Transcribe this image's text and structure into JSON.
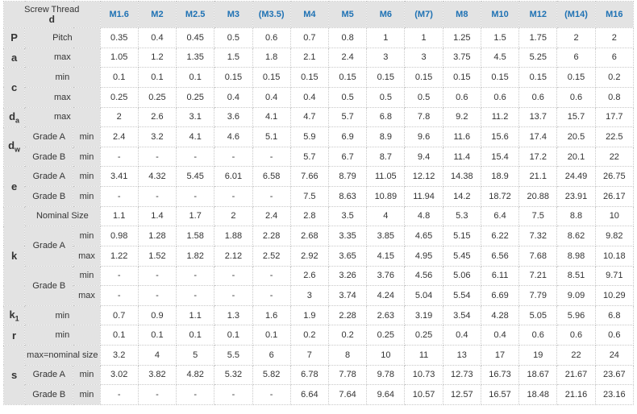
{
  "header": {
    "corner_title": "Screw Thread",
    "corner_symbol": "d",
    "sizes": [
      "M1.6",
      "M2",
      "M2.5",
      "M3",
      "(M3.5)",
      "M4",
      "M5",
      "M6",
      "(M7)",
      "M8",
      "M10",
      "M12",
      "(M14)",
      "M16"
    ]
  },
  "rows": [
    {
      "label": "Pitch",
      "values": [
        "0.35",
        "0.4",
        "0.45",
        "0.5",
        "0.6",
        "0.7",
        "0.8",
        "1",
        "1",
        "1.25",
        "1.5",
        "1.75",
        "2",
        "2"
      ]
    },
    {
      "label": "max",
      "values": [
        "1.05",
        "1.2",
        "1.35",
        "1.5",
        "1.8",
        "2.1",
        "2.4",
        "3",
        "3",
        "3.75",
        "4.5",
        "5.25",
        "6",
        "6"
      ]
    },
    {
      "label": "min",
      "values": [
        "0.1",
        "0.1",
        "0.1",
        "0.15",
        "0.15",
        "0.15",
        "0.15",
        "0.15",
        "0.15",
        "0.15",
        "0.15",
        "0.15",
        "0.15",
        "0.2"
      ]
    },
    {
      "label": "max",
      "values": [
        "0.25",
        "0.25",
        "0.25",
        "0.4",
        "0.4",
        "0.4",
        "0.5",
        "0.5",
        "0.5",
        "0.6",
        "0.6",
        "0.6",
        "0.6",
        "0.8"
      ]
    },
    {
      "label": "max",
      "values": [
        "2",
        "2.6",
        "3.1",
        "3.6",
        "4.1",
        "4.7",
        "5.7",
        "6.8",
        "7.8",
        "9.2",
        "11.2",
        "13.7",
        "15.7",
        "17.7"
      ]
    },
    {
      "grade": "Grade A",
      "label": "min",
      "values": [
        "2.4",
        "3.2",
        "4.1",
        "4.6",
        "5.1",
        "5.9",
        "6.9",
        "8.9",
        "9.6",
        "11.6",
        "15.6",
        "17.4",
        "20.5",
        "22.5"
      ]
    },
    {
      "grade": "Grade B",
      "label": "min",
      "values": [
        "-",
        "-",
        "-",
        "-",
        "-",
        "5.7",
        "6.7",
        "8.7",
        "9.4",
        "11.4",
        "15.4",
        "17.2",
        "20.1",
        "22"
      ]
    },
    {
      "grade": "Grade A",
      "label": "min",
      "values": [
        "3.41",
        "4.32",
        "5.45",
        "6.01",
        "6.58",
        "7.66",
        "8.79",
        "11.05",
        "12.12",
        "14.38",
        "18.9",
        "21.1",
        "24.49",
        "26.75"
      ]
    },
    {
      "grade": "Grade B",
      "label": "min",
      "values": [
        "-",
        "-",
        "-",
        "-",
        "-",
        "7.5",
        "8.63",
        "10.89",
        "11.94",
        "14.2",
        "18.72",
        "20.88",
        "23.91",
        "26.17"
      ]
    },
    {
      "label": "Nominal Size",
      "values": [
        "1.1",
        "1.4",
        "1.7",
        "2",
        "2.4",
        "2.8",
        "3.5",
        "4",
        "4.8",
        "5.3",
        "6.4",
        "7.5",
        "8.8",
        "10"
      ]
    },
    {
      "grade": "Grade A",
      "label": "min",
      "values": [
        "0.98",
        "1.28",
        "1.58",
        "1.88",
        "2.28",
        "2.68",
        "3.35",
        "3.85",
        "4.65",
        "5.15",
        "6.22",
        "7.32",
        "8.62",
        "9.82"
      ]
    },
    {
      "label": "max",
      "values": [
        "1.22",
        "1.52",
        "1.82",
        "2.12",
        "2.52",
        "2.92",
        "3.65",
        "4.15",
        "4.95",
        "5.45",
        "6.56",
        "7.68",
        "8.98",
        "10.18"
      ]
    },
    {
      "grade": "Grade B",
      "label": "min",
      "values": [
        "-",
        "-",
        "-",
        "-",
        "-",
        "2.6",
        "3.26",
        "3.76",
        "4.56",
        "5.06",
        "6.11",
        "7.21",
        "8.51",
        "9.71"
      ]
    },
    {
      "label": "max",
      "values": [
        "-",
        "-",
        "-",
        "-",
        "-",
        "3",
        "3.74",
        "4.24",
        "5.04",
        "5.54",
        "6.69",
        "7.79",
        "9.09",
        "10.29"
      ]
    },
    {
      "label": "min",
      "values": [
        "0.7",
        "0.9",
        "1.1",
        "1.3",
        "1.6",
        "1.9",
        "2.28",
        "2.63",
        "3.19",
        "3.54",
        "4.28",
        "5.05",
        "5.96",
        "6.8"
      ]
    },
    {
      "label": "min",
      "values": [
        "0.1",
        "0.1",
        "0.1",
        "0.1",
        "0.1",
        "0.2",
        "0.2",
        "0.25",
        "0.25",
        "0.4",
        "0.4",
        "0.6",
        "0.6",
        "0.6"
      ]
    },
    {
      "label": "max=nominal size",
      "values": [
        "3.2",
        "4",
        "5",
        "5.5",
        "6",
        "7",
        "8",
        "10",
        "11",
        "13",
        "17",
        "19",
        "22",
        "24"
      ]
    },
    {
      "grade": "Grade A",
      "label": "min",
      "values": [
        "3.02",
        "3.82",
        "4.82",
        "5.32",
        "5.82",
        "6.78",
        "7.78",
        "9.78",
        "10.73",
        "12.73",
        "16.73",
        "18.67",
        "21.67",
        "23.67"
      ]
    },
    {
      "grade": "Grade B",
      "label": "min",
      "values": [
        "-",
        "-",
        "-",
        "-",
        "-",
        "6.64",
        "7.64",
        "9.64",
        "10.57",
        "12.57",
        "16.57",
        "18.48",
        "21.16",
        "23.16"
      ]
    }
  ],
  "symbols": {
    "P": "P",
    "a": "a",
    "c": "c",
    "da": "d",
    "da_sub": "a",
    "dw": "d",
    "dw_sub": "w",
    "e": "e",
    "k": "k",
    "k1": "k",
    "k1_sub": "1",
    "r": "r",
    "s": "s"
  }
}
